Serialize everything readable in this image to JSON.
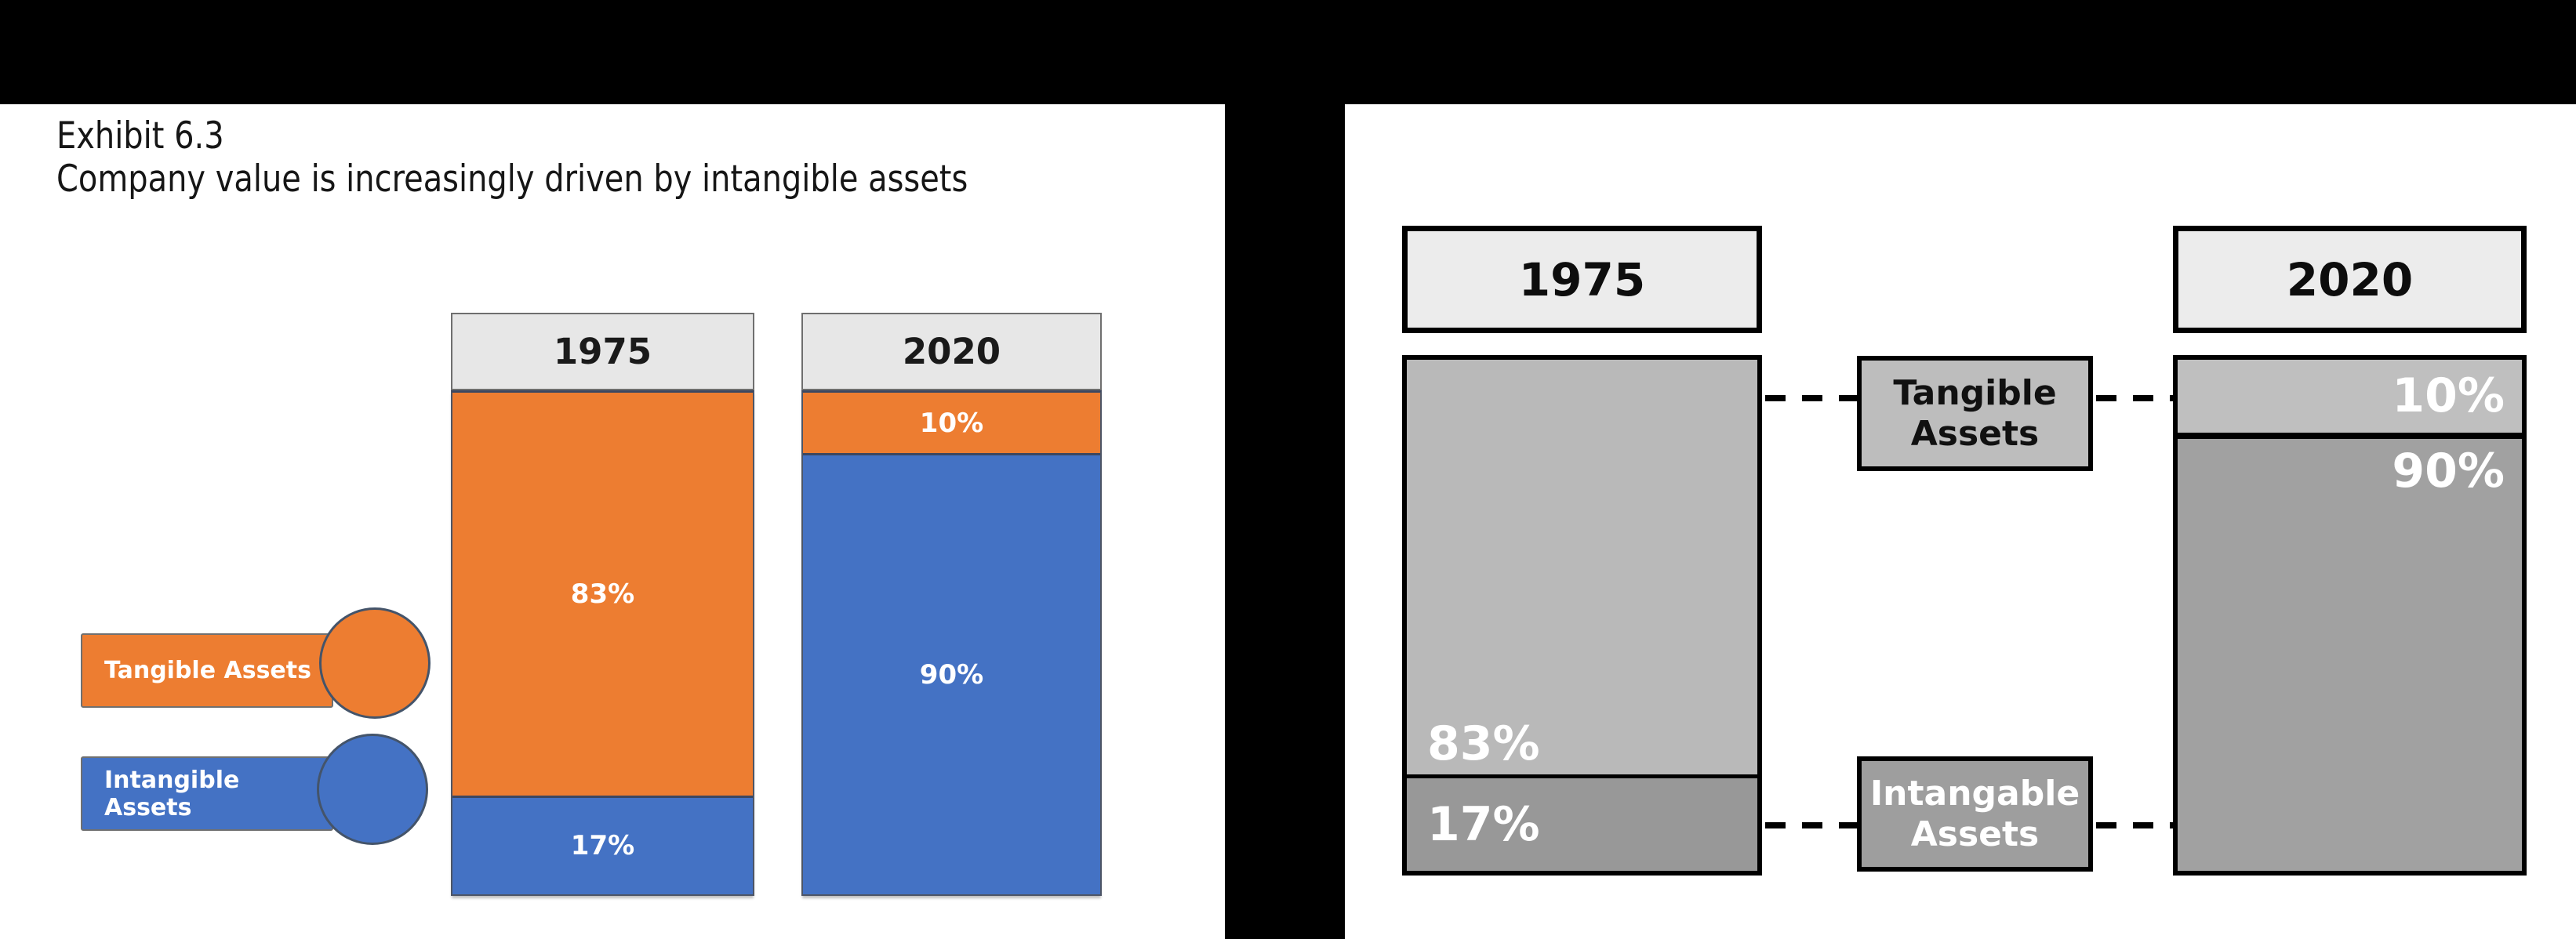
{
  "left_chart": {
    "title_line1": "Exhibit 6.3",
    "title_line2": "Company value is increasingly driven by intangible assets",
    "columns": [
      {
        "year": "1975",
        "segments": [
          {
            "series": "Tangible Assets",
            "label": "83%",
            "height_pct": 80.3,
            "color": "#ED7D31"
          },
          {
            "series": "Intangible Assets",
            "label": "17%",
            "height_pct": 19.7,
            "color": "#4472C4"
          }
        ]
      },
      {
        "year": "2020",
        "segments": [
          {
            "series": "Tangible Assets",
            "label": "10%",
            "height_pct": 12.1,
            "color": "#ED7D31"
          },
          {
            "series": "Intangible Assets",
            "label": "90%",
            "height_pct": 87.9,
            "color": "#4472C4"
          }
        ]
      }
    ],
    "legend": [
      {
        "label": "Tangible Assets",
        "color": "#ED7D31"
      },
      {
        "label": "Intangible Assets",
        "color": "#4472C4"
      }
    ]
  },
  "right_chart": {
    "columns": [
      {
        "year": "1975",
        "segments": [
          {
            "series": "Tangible Assets",
            "label": "83%",
            "height_pct": 81.2,
            "color": "#b9b9b9"
          },
          {
            "series": "Intangable Assets",
            "label": "17%",
            "height_pct": 18.8,
            "color": "#989898"
          }
        ]
      },
      {
        "year": "2020",
        "segments": [
          {
            "series": "Tangible Assets",
            "label": "10%",
            "height_pct": 14.2,
            "color": "#bfbfbf"
          },
          {
            "series": "Intangable Assets",
            "label": "90%",
            "height_pct": 85.8,
            "color": "#a1a1a1"
          }
        ]
      }
    ],
    "callouts": {
      "tangible_line1": "Tangible",
      "tangible_line2": "Assets",
      "intangible_line1": "Intangable",
      "intangible_line2": "Assets"
    },
    "colors": {
      "tangible_box": "#bdbdbd",
      "intangible_box": "#9e9e9e"
    }
  },
  "chart_data": [
    {
      "type": "bar",
      "subtype": "stacked_100pct_column",
      "panel": "original_exhibit_left",
      "title": "Exhibit 6.3",
      "subtitle": "Company value is increasingly driven by intangible assets",
      "categories": [
        "1975",
        "2020"
      ],
      "series": [
        {
          "name": "Tangible Assets",
          "values": [
            83,
            10
          ],
          "unit": "%",
          "color": "#ED7D31"
        },
        {
          "name": "Intangible Assets",
          "values": [
            17,
            90
          ],
          "unit": "%",
          "color": "#4472C4"
        }
      ],
      "data_labels": [
        [
          "83%",
          "10%"
        ],
        [
          "17%",
          "90%"
        ]
      ],
      "legend_position": "left",
      "axes": "none",
      "grid": false
    },
    {
      "type": "bar",
      "subtype": "stacked_100pct_column",
      "panel": "grayscale_recreation_right",
      "title": "",
      "categories": [
        "1975",
        "2020"
      ],
      "series": [
        {
          "name": "Tangible Assets",
          "values": [
            83,
            10
          ],
          "unit": "%",
          "color": "#b9b9b9"
        },
        {
          "name": "Intangable Assets",
          "values": [
            17,
            90
          ],
          "unit": "%",
          "color": "#9e9e9e"
        }
      ],
      "data_labels": [
        [
          "83%",
          "10%"
        ],
        [
          "17%",
          "90%"
        ]
      ],
      "legend_position": "center_callouts_with_dashed_connectors",
      "axes": "none",
      "grid": false
    }
  ]
}
